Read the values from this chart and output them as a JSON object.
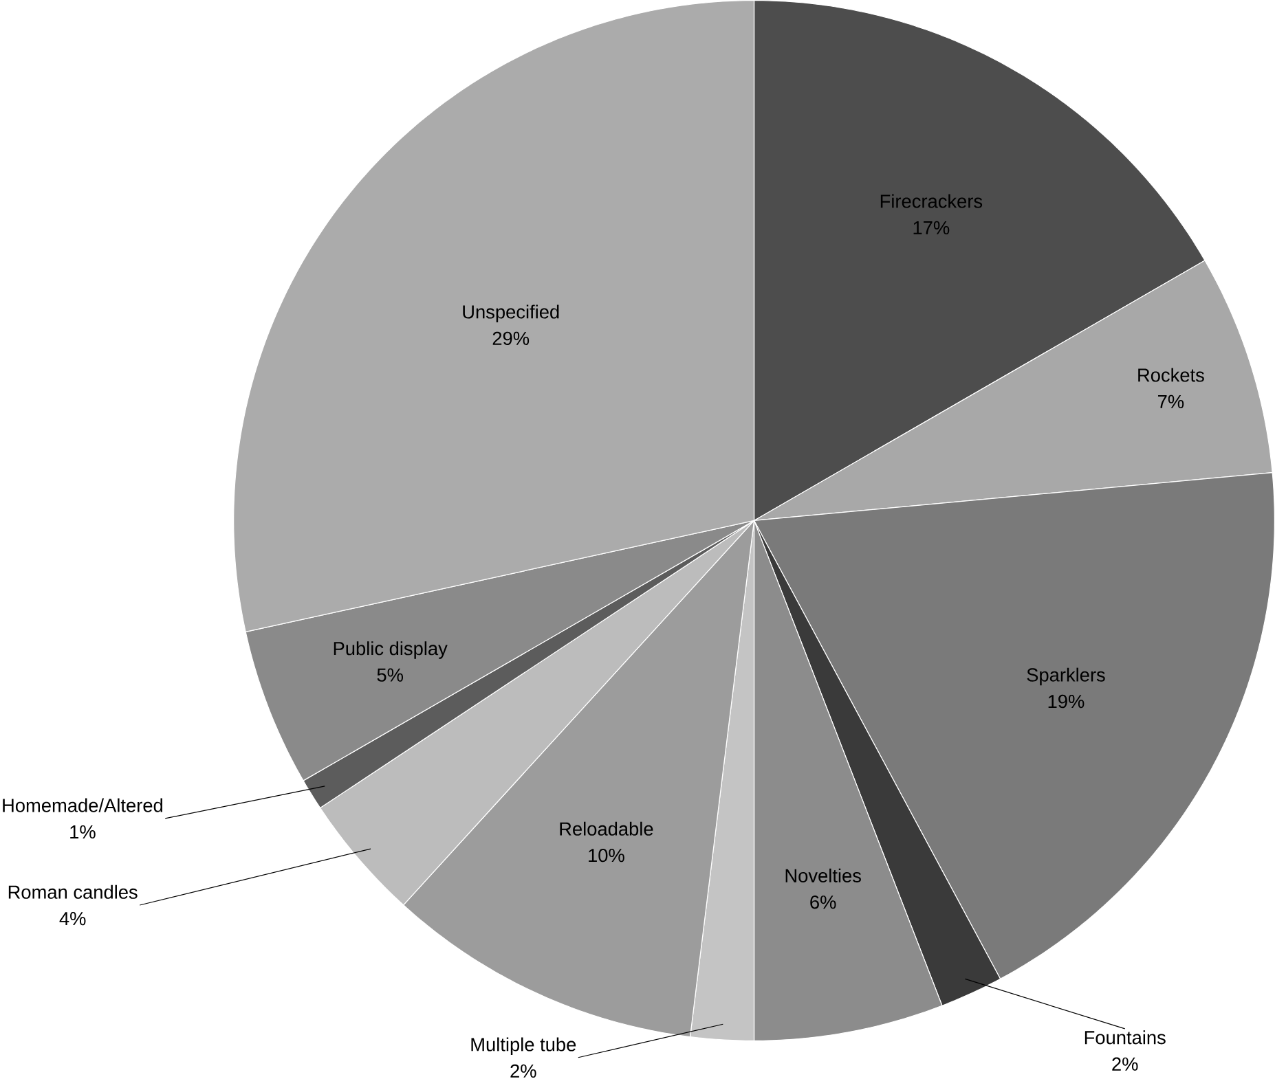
{
  "chart_data": {
    "type": "pie",
    "categories": [
      "Firecrackers",
      "Rockets",
      "Sparklers",
      "Fountains",
      "Novelties",
      "Multiple tube",
      "Reloadable",
      "Roman candles",
      "Homemade/Altered",
      "Public display",
      "Unspecified"
    ],
    "values": [
      17,
      7,
      19,
      2,
      6,
      2,
      10,
      4,
      1,
      5,
      29
    ],
    "colors": [
      "#4d4d4d",
      "#a8a8a8",
      "#7a7a7a",
      "#3a3a3a",
      "#8c8c8c",
      "#c4c4c4",
      "#9c9c9c",
      "#bcbcbc",
      "#5c5c5c",
      "#8a8a8a",
      "#ababab"
    ],
    "value_labels": [
      "17%",
      "7%",
      "19%",
      "2%",
      "6%",
      "2%",
      "10%",
      "4%",
      "1%",
      "5%",
      "29%"
    ],
    "legend": false
  }
}
